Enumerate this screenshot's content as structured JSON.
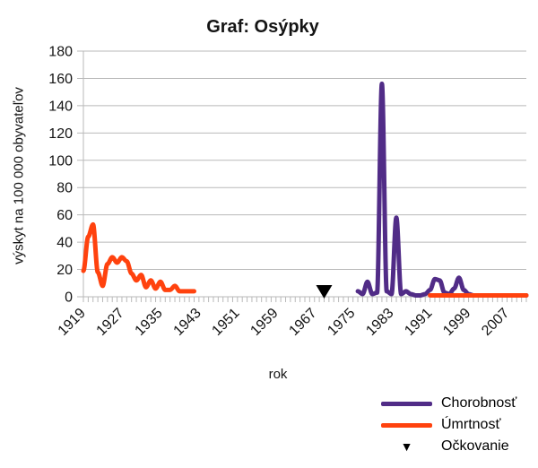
{
  "title": "Graf: Osýpky",
  "chart_data": {
    "type": "line",
    "title": "Graf: Osýpky",
    "xlabel": "rok",
    "ylabel": "výskyt na 100 000 obyvateľov",
    "x_range": [
      1919,
      2011
    ],
    "ylim": [
      0,
      180
    ],
    "y_tick_step": 20,
    "x_minor_tick_step": 1,
    "x_tick_labels": [
      "1919",
      "1927",
      "1935",
      "1943",
      "1951",
      "1959",
      "1967",
      "1975",
      "1983",
      "1991",
      "1999",
      "2007"
    ],
    "grid": true,
    "grid_color": "#b9b9b9",
    "legend_position": "bottom-right",
    "series": [
      {
        "name": "Chorobnosť",
        "color": "#512C87",
        "segments": [
          [
            [
              1976,
              4
            ],
            [
              1977,
              2
            ],
            [
              1978,
              11
            ],
            [
              1979,
              2
            ],
            [
              1980,
              3
            ],
            [
              1981,
              156
            ],
            [
              1982,
              4
            ],
            [
              1983,
              2
            ],
            [
              1984,
              58
            ],
            [
              1985,
              2
            ],
            [
              1986,
              4
            ],
            [
              1987,
              2
            ],
            [
              1988,
              1
            ],
            [
              1989,
              1
            ],
            [
              1990,
              2
            ],
            [
              1991,
              5
            ],
            [
              1992,
              13
            ],
            [
              1993,
              12
            ],
            [
              1994,
              3
            ],
            [
              1995,
              2
            ],
            [
              1996,
              6
            ],
            [
              1997,
              14
            ],
            [
              1998,
              5
            ],
            [
              1999,
              2
            ],
            [
              2000,
              1
            ],
            [
              2001,
              1
            ],
            [
              2002,
              1
            ],
            [
              2003,
              1
            ],
            [
              2004,
              1
            ],
            [
              2005,
              1
            ],
            [
              2006,
              1
            ],
            [
              2007,
              1
            ],
            [
              2008,
              1
            ],
            [
              2009,
              1
            ],
            [
              2010,
              1
            ],
            [
              2011,
              1
            ]
          ]
        ]
      },
      {
        "name": "Úmrtnosť",
        "color": "#FF420E",
        "segments": [
          [
            [
              1919,
              19
            ],
            [
              1920,
              44
            ],
            [
              1921,
              53
            ],
            [
              1922,
              18
            ],
            [
              1923,
              8
            ],
            [
              1924,
              24
            ],
            [
              1925,
              29
            ],
            [
              1926,
              25
            ],
            [
              1927,
              29
            ],
            [
              1928,
              26
            ],
            [
              1929,
              17
            ],
            [
              1930,
              12
            ],
            [
              1931,
              16
            ],
            [
              1932,
              7
            ],
            [
              1933,
              12
            ],
            [
              1934,
              6
            ],
            [
              1935,
              11
            ],
            [
              1936,
              5
            ],
            [
              1937,
              5
            ],
            [
              1938,
              8
            ],
            [
              1939,
              4
            ],
            [
              1940,
              4
            ],
            [
              1941,
              4
            ],
            [
              1942,
              4
            ]
          ],
          [
            [
              1991,
              1
            ],
            [
              2011,
              1
            ]
          ]
        ]
      }
    ],
    "markers": [
      {
        "name": "Očkovanie",
        "symbol": "triangle-down",
        "color": "#000000",
        "x": 1969,
        "y": 0
      }
    ]
  }
}
